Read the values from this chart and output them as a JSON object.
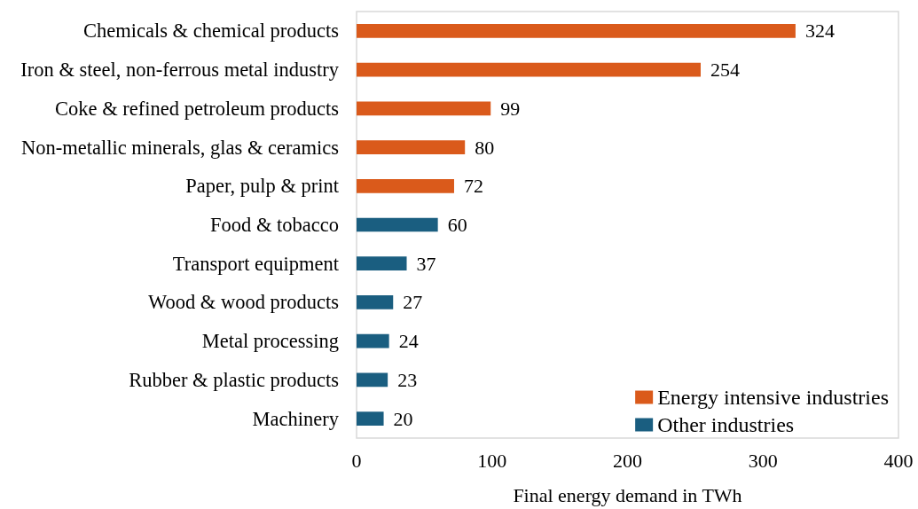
{
  "chart_data": {
    "type": "bar",
    "orientation": "horizontal",
    "stacked": true,
    "xlabel": "Final energy demand in TWh",
    "categories": [
      "Chemicals & chemical products",
      "Iron & steel, non-ferrous metal industry",
      "Coke & refined petroleum products",
      "Non-metallic minerals, glas & ceramics",
      "Paper, pulp & print",
      "Food & tobacco",
      "Transport equipment",
      "Wood & wood products",
      "Metal processing",
      "Rubber & plastic products",
      "Machinery"
    ],
    "series": [
      {
        "name": "Energy intensive industries",
        "color": "#da5a1b",
        "values": [
          324,
          254,
          99,
          80,
          72,
          null,
          null,
          null,
          null,
          null,
          null
        ]
      },
      {
        "name": "Other industries",
        "color": "#1a5e80",
        "values": [
          null,
          null,
          null,
          null,
          null,
          60,
          37,
          27,
          24,
          23,
          20
        ]
      }
    ],
    "xlim": [
      0,
      400
    ],
    "xticks": [
      0,
      100,
      200,
      300,
      400
    ],
    "data_labels": true,
    "grid": false,
    "legend": "bottom right"
  }
}
